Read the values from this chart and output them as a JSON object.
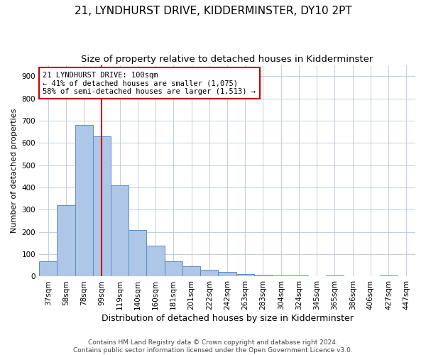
{
  "title": "21, LYNDHURST DRIVE, KIDDERMINSTER, DY10 2PT",
  "subtitle": "Size of property relative to detached houses in Kidderminster",
  "xlabel": "Distribution of detached houses by size in Kidderminster",
  "ylabel": "Number of detached properties",
  "footnote": "Contains HM Land Registry data © Crown copyright and database right 2024.\nContains public sector information licensed under the Open Government Licence v3.0.",
  "bar_labels": [
    "37sqm",
    "58sqm",
    "78sqm",
    "99sqm",
    "119sqm",
    "140sqm",
    "160sqm",
    "181sqm",
    "201sqm",
    "222sqm",
    "242sqm",
    "263sqm",
    "283sqm",
    "304sqm",
    "324sqm",
    "345sqm",
    "365sqm",
    "386sqm",
    "406sqm",
    "427sqm",
    "447sqm"
  ],
  "bar_values": [
    70,
    320,
    680,
    630,
    410,
    210,
    140,
    70,
    45,
    30,
    20,
    10,
    8,
    5,
    5,
    0,
    5,
    0,
    0,
    5,
    0
  ],
  "bar_color": "#aec6e8",
  "bar_edge_color": "#5b8ec4",
  "annotation_text": "21 LYNDHURST DRIVE: 100sqm\n← 41% of detached houses are smaller (1,075)\n58% of semi-detached houses are larger (1,513) →",
  "vline_color": "#cc0000",
  "annotation_box_color": "#ffffff",
  "annotation_box_edge": "#cc0000",
  "ylim": [
    0,
    950
  ],
  "yticks": [
    0,
    100,
    200,
    300,
    400,
    500,
    600,
    700,
    800,
    900
  ],
  "grid_color": "#b8c8d8",
  "title_fontsize": 11,
  "subtitle_fontsize": 9.5,
  "tick_fontsize": 7.5,
  "ylabel_fontsize": 8,
  "xlabel_fontsize": 9,
  "footnote_fontsize": 6.5,
  "annotation_fontsize": 7.5
}
